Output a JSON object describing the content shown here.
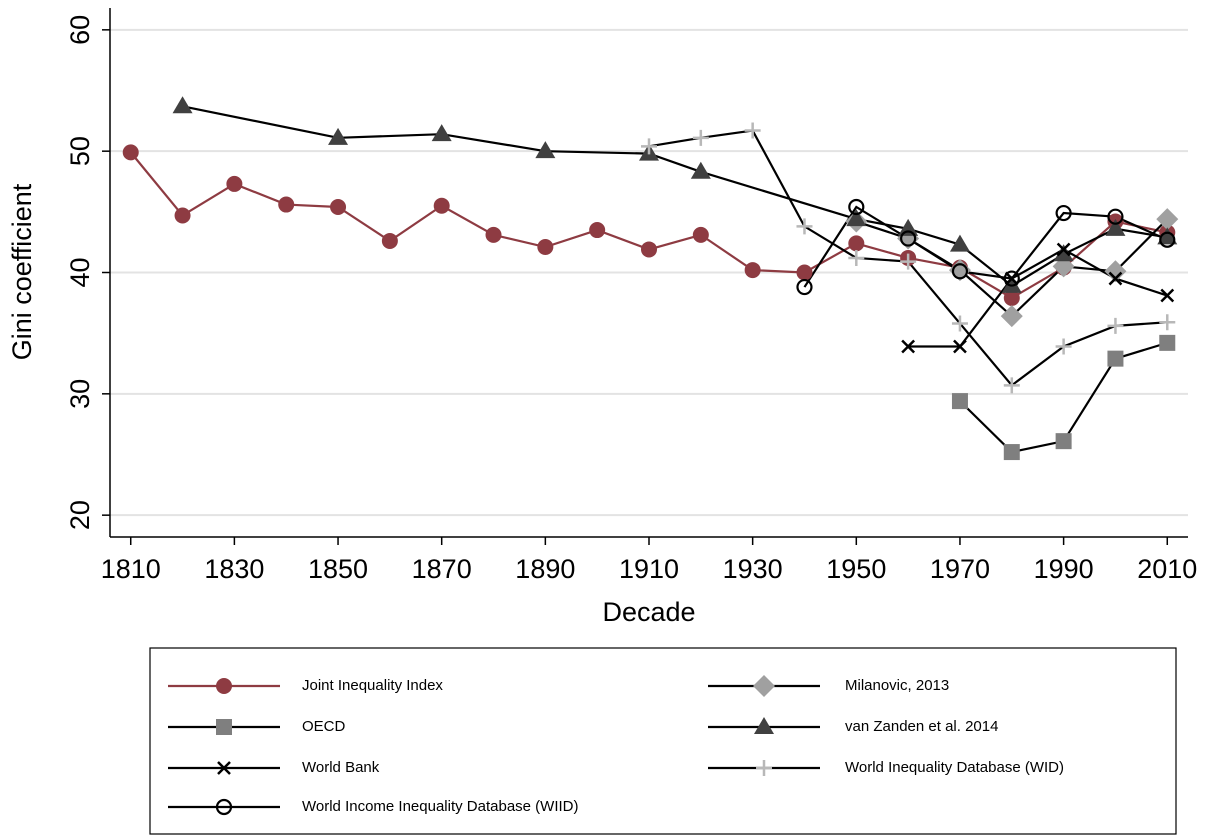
{
  "chart_data": {
    "type": "line",
    "x_label": "Decade",
    "y_label": "Gini coefficient",
    "xlim": [
      1806,
      2014
    ],
    "ylim": [
      18.2,
      61.8
    ],
    "xticks": [
      1810,
      1830,
      1850,
      1870,
      1890,
      1910,
      1930,
      1950,
      1970,
      1990,
      2010
    ],
    "yticks": [
      20,
      30,
      40,
      50,
      60
    ],
    "grid": true,
    "series": [
      {
        "name": "Joint Inequality Index",
        "color": "#8e3b42",
        "line_color": "#8e3b42",
        "marker": "circle",
        "x": [
          1810,
          1820,
          1830,
          1840,
          1850,
          1860,
          1870,
          1880,
          1890,
          1900,
          1910,
          1920,
          1930,
          1940,
          1950,
          1960,
          1970,
          1980,
          1990,
          2000,
          2010
        ],
        "values": [
          49.9,
          44.7,
          47.3,
          45.6,
          45.4,
          42.6,
          45.5,
          43.1,
          42.1,
          43.5,
          41.9,
          43.1,
          40.2,
          40.0,
          42.4,
          41.2,
          40.4,
          37.9,
          40.4,
          44.2,
          43.3
        ]
      },
      {
        "name": "Milanovic, 2013",
        "color": "#a0a0a0",
        "line_color": "#000000",
        "marker": "diamond",
        "x": [
          1950,
          1960,
          1970,
          1980,
          1990,
          2000,
          2010
        ],
        "values": [
          44.2,
          42.8,
          40.2,
          36.4,
          40.5,
          40.1,
          44.4
        ]
      },
      {
        "name": "OECD",
        "color": "#7f7f7f",
        "line_color": "#000000",
        "marker": "square",
        "x": [
          1970,
          1980,
          1990,
          2000,
          2010
        ],
        "values": [
          29.4,
          25.2,
          26.1,
          32.9,
          34.2
        ]
      },
      {
        "name": "van Zanden et al. 2014",
        "color": "#404040",
        "line_color": "#000000",
        "marker": "triangle",
        "x": [
          1820,
          1850,
          1870,
          1890,
          1910,
          1920,
          1950,
          1960,
          1970,
          1980,
          1990,
          2000,
          2010
        ],
        "values": [
          53.7,
          51.1,
          51.4,
          50.0,
          49.8,
          48.3,
          44.4,
          43.6,
          42.3,
          38.9,
          41.5,
          43.6,
          42.9
        ]
      },
      {
        "name": "World Bank",
        "color": "#000000",
        "line_color": "#000000",
        "marker": "x",
        "x": [
          1960,
          1970,
          1980,
          1990,
          2000,
          2010
        ],
        "values": [
          33.9,
          33.9,
          39.5,
          41.9,
          39.5,
          38.1
        ]
      },
      {
        "name": "World Inequality Database (WID)",
        "color": "#b8b8b8",
        "line_color": "#000000",
        "marker": "plus",
        "x": [
          1910,
          1920,
          1930,
          1940,
          1950,
          1960,
          1970,
          1980,
          1990,
          2000,
          2010
        ],
        "values": [
          50.4,
          51.1,
          51.7,
          43.8,
          41.2,
          40.9,
          35.8,
          30.7,
          33.9,
          35.6,
          35.9
        ]
      },
      {
        "name": "World Income Inequality Database (WIID)",
        "color": "#000000",
        "line_color": "#000000",
        "marker": "circle-open",
        "x": [
          1940,
          1950,
          1960,
          1970,
          1980,
          1990,
          2000,
          2010
        ],
        "values": [
          38.8,
          45.4,
          42.8,
          40.1,
          39.5,
          44.9,
          44.6,
          42.7
        ]
      }
    ]
  }
}
